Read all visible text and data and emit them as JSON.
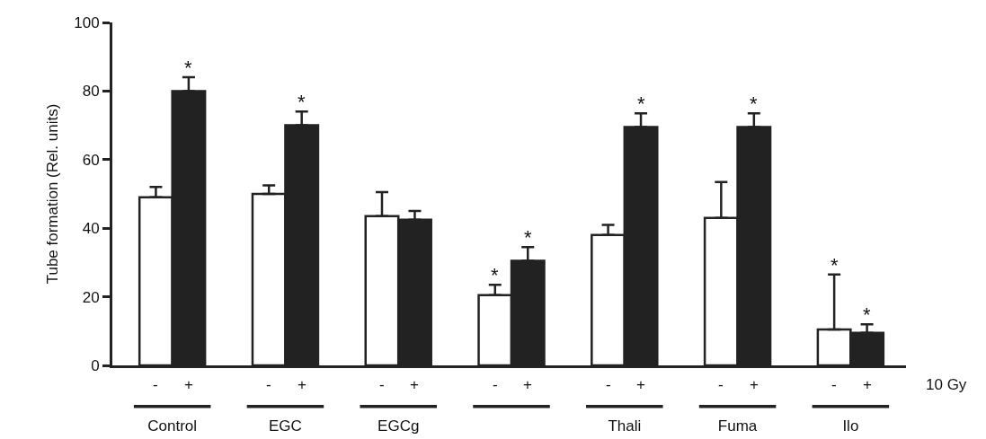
{
  "chart_data": {
    "type": "bar",
    "ylabel": "Tube formation (Rel. units)",
    "categories": [
      "Control",
      "EGC",
      "EGCg",
      null,
      "Thali",
      "Fuma",
      "Ilo"
    ],
    "series": [
      {
        "name": "-",
        "color": "#ffffff",
        "values": [
          49,
          50,
          43.5,
          20.5,
          38,
          43,
          10.5
        ],
        "errors": [
          [
            49,
            52
          ],
          [
            50,
            52.5
          ],
          [
            43.5,
            50.5
          ],
          [
            20.5,
            23.5
          ],
          [
            38,
            41
          ],
          [
            43,
            53.5
          ],
          [
            10.5,
            26.5
          ]
        ],
        "value_labels": [
          null,
          null,
          null,
          "*",
          null,
          null,
          "*"
        ]
      },
      {
        "name": "+",
        "color": "#222222",
        "values": [
          80,
          70,
          42.5,
          30.5,
          69.5,
          69.5,
          9.5
        ],
        "errors": [
          [
            80,
            84
          ],
          [
            70,
            74
          ],
          [
            42.5,
            45
          ],
          [
            30.5,
            34.5
          ],
          [
            69.5,
            73.5
          ],
          [
            69.5,
            73.5
          ],
          [
            9.5,
            12
          ]
        ],
        "value_labels": [
          "*",
          "*",
          null,
          "*",
          "*",
          "*",
          "*"
        ]
      }
    ],
    "ylim": [
      0,
      100
    ],
    "yticks": [
      0,
      20,
      40,
      60,
      80,
      100
    ],
    "annotations": [
      "10 Gy"
    ],
    "grid": false,
    "legend": false
  }
}
